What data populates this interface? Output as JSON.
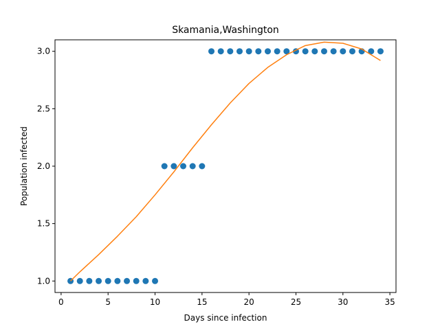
{
  "chart_data": {
    "type": "scatter",
    "title": "Skamania,Washington",
    "xlabel": "Days since infection",
    "ylabel": "Population infected",
    "xlim": [
      -0.65,
      35.65
    ],
    "ylim": [
      0.9,
      3.1
    ],
    "xticks": [
      0,
      5,
      10,
      15,
      20,
      25,
      30,
      35
    ],
    "yticks": [
      1.0,
      1.5,
      2.0,
      2.5,
      3.0
    ],
    "xtick_labels": [
      "0",
      "5",
      "10",
      "15",
      "20",
      "25",
      "30",
      "35"
    ],
    "ytick_labels": [
      "1.0",
      "1.5",
      "2.0",
      "2.5",
      "3.0"
    ],
    "grid": false,
    "colors": {
      "scatter": "#1f77b4",
      "fit": "#ff7f0e"
    },
    "series": [
      {
        "type": "scatter",
        "x": [
          1,
          2,
          3,
          4,
          5,
          6,
          7,
          8,
          9,
          10,
          11,
          12,
          13,
          14,
          15,
          16,
          17,
          18,
          19,
          20,
          21,
          22,
          23,
          24,
          25,
          26,
          27,
          28,
          29,
          30,
          31,
          32,
          33,
          34
        ],
        "y": [
          1,
          1,
          1,
          1,
          1,
          1,
          1,
          1,
          1,
          1,
          2,
          2,
          2,
          2,
          2,
          3,
          3,
          3,
          3,
          3,
          3,
          3,
          3,
          3,
          3,
          3,
          3,
          3,
          3,
          3,
          3,
          3,
          3,
          3
        ]
      },
      {
        "type": "line",
        "x": [
          1,
          2,
          4,
          6,
          8,
          10,
          12,
          14,
          16,
          18,
          20,
          22,
          24,
          26,
          28,
          30,
          32,
          34
        ],
        "y": [
          1.0,
          1.08,
          1.23,
          1.39,
          1.56,
          1.75,
          1.95,
          2.16,
          2.36,
          2.55,
          2.72,
          2.86,
          2.97,
          3.05,
          3.08,
          3.07,
          3.02,
          2.92
        ]
      }
    ]
  }
}
